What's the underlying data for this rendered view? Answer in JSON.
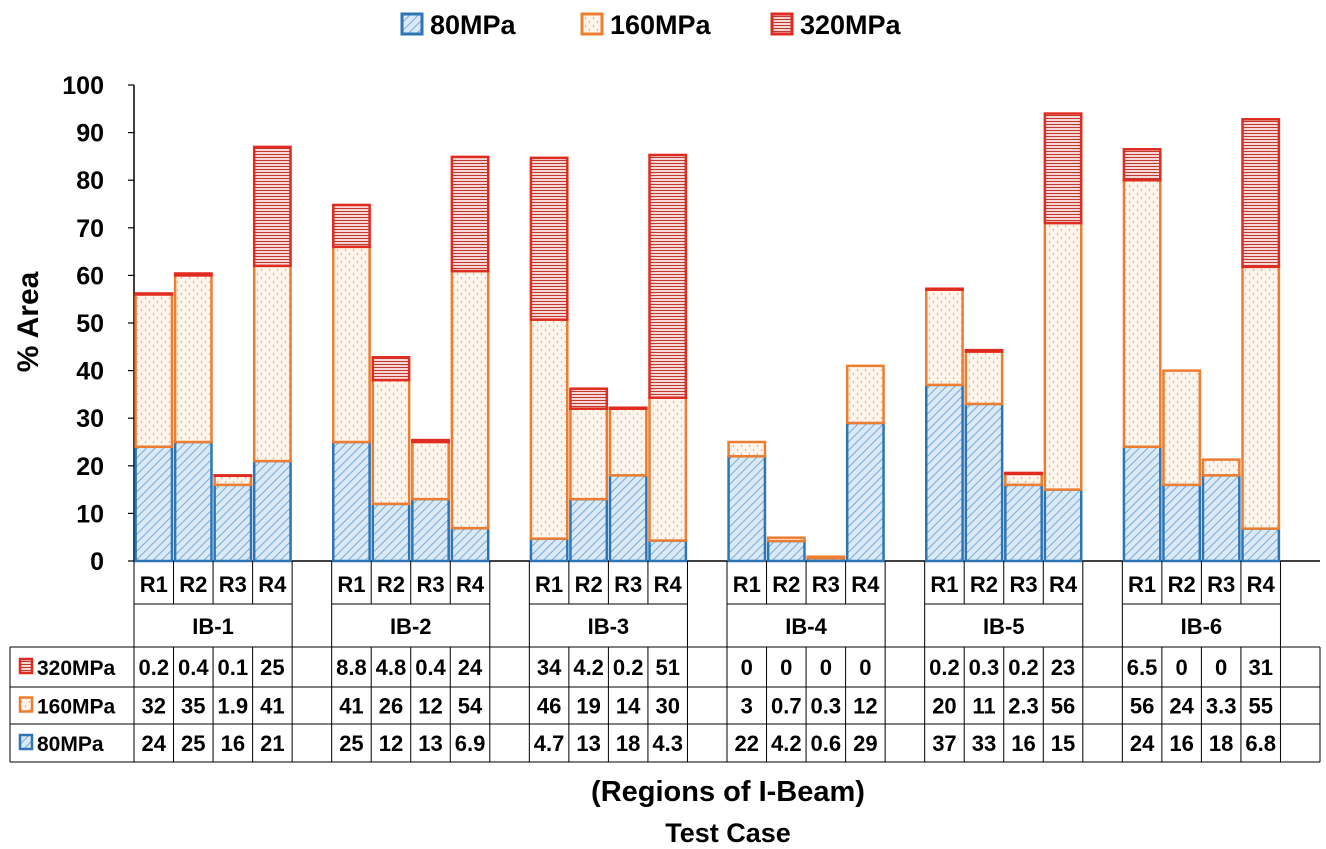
{
  "chart_data": {
    "type": "bar",
    "stacked": true,
    "ylabel": "% Area",
    "xlabel": "Test Case",
    "xlabel_sub": "(Regions of I-Beam)",
    "ylim": [
      0,
      100
    ],
    "yticks": [
      0,
      10,
      20,
      30,
      40,
      50,
      60,
      70,
      80,
      90,
      100
    ],
    "grid": false,
    "legend_position": "top-center",
    "groups": [
      "IB-1",
      "IB-2",
      "IB-3",
      "IB-4",
      "IB-5",
      "IB-6"
    ],
    "regions": [
      "R1",
      "R2",
      "R3",
      "R4"
    ],
    "series": [
      {
        "name": "80MPa",
        "color": "#2e75b6",
        "fill": "#dbe9f4",
        "pattern": "diagonal-hatch",
        "values": [
          [
            24,
            25,
            16,
            21
          ],
          [
            25,
            12,
            13,
            6.9
          ],
          [
            4.7,
            13,
            18,
            4.3
          ],
          [
            22,
            4.2,
            0.6,
            29
          ],
          [
            37,
            33,
            16,
            15
          ],
          [
            24,
            16,
            18,
            6.8
          ]
        ]
      },
      {
        "name": "160MPa",
        "color": "#ed7d31",
        "fill": "#fdf3ea",
        "pattern": "dotted-dash",
        "values": [
          [
            32,
            35,
            1.9,
            41
          ],
          [
            41,
            26,
            12,
            54
          ],
          [
            46,
            19,
            14,
            30
          ],
          [
            3,
            0.7,
            0.3,
            12
          ],
          [
            20,
            11,
            2.3,
            56
          ],
          [
            56,
            24,
            3.3,
            55
          ]
        ]
      },
      {
        "name": "320MPa",
        "color": "#e02b20",
        "fill": "#f4cccc",
        "pattern": "horizontal-lines",
        "values": [
          [
            0.2,
            0.4,
            0.1,
            25
          ],
          [
            8.8,
            4.8,
            0.4,
            24
          ],
          [
            34,
            4.2,
            0.2,
            51
          ],
          [
            0,
            0,
            0,
            0
          ],
          [
            0.2,
            0.3,
            0.2,
            23
          ],
          [
            6.5,
            0,
            0,
            31
          ]
        ]
      }
    ],
    "table_rows": [
      {
        "label": "320MPa",
        "series_index": 2,
        "cells": [
          [
            "0.2",
            "0.4",
            "0.1",
            "25"
          ],
          [
            "8.8",
            "4.8",
            "0.4",
            "24"
          ],
          [
            "34",
            "4.2",
            "0.2",
            "51"
          ],
          [
            "0",
            "0",
            "0",
            "0"
          ],
          [
            "0.2",
            "0.3",
            "0.2",
            "23"
          ],
          [
            "6.5",
            "0",
            "0",
            "31"
          ]
        ]
      },
      {
        "label": "160MPa",
        "series_index": 1,
        "cells": [
          [
            "32",
            "35",
            "1.9",
            "41"
          ],
          [
            "41",
            "26",
            "12",
            "54"
          ],
          [
            "46",
            "19",
            "14",
            "30"
          ],
          [
            "3",
            "0.7",
            "0.3",
            "12"
          ],
          [
            "20",
            "11",
            "2.3",
            "56"
          ],
          [
            "56",
            "24",
            "3.3",
            "55"
          ]
        ]
      },
      {
        "label": "80MPa",
        "series_index": 0,
        "cells": [
          [
            "24",
            "25",
            "16",
            "21"
          ],
          [
            "25",
            "12",
            "13",
            "6.9"
          ],
          [
            "4.7",
            "13",
            "18",
            "4.3"
          ],
          [
            "22",
            "4.2",
            "0.6",
            "29"
          ],
          [
            "37",
            "33",
            "16",
            "15"
          ],
          [
            "24",
            "16",
            "18",
            "6.8"
          ]
        ]
      }
    ]
  }
}
